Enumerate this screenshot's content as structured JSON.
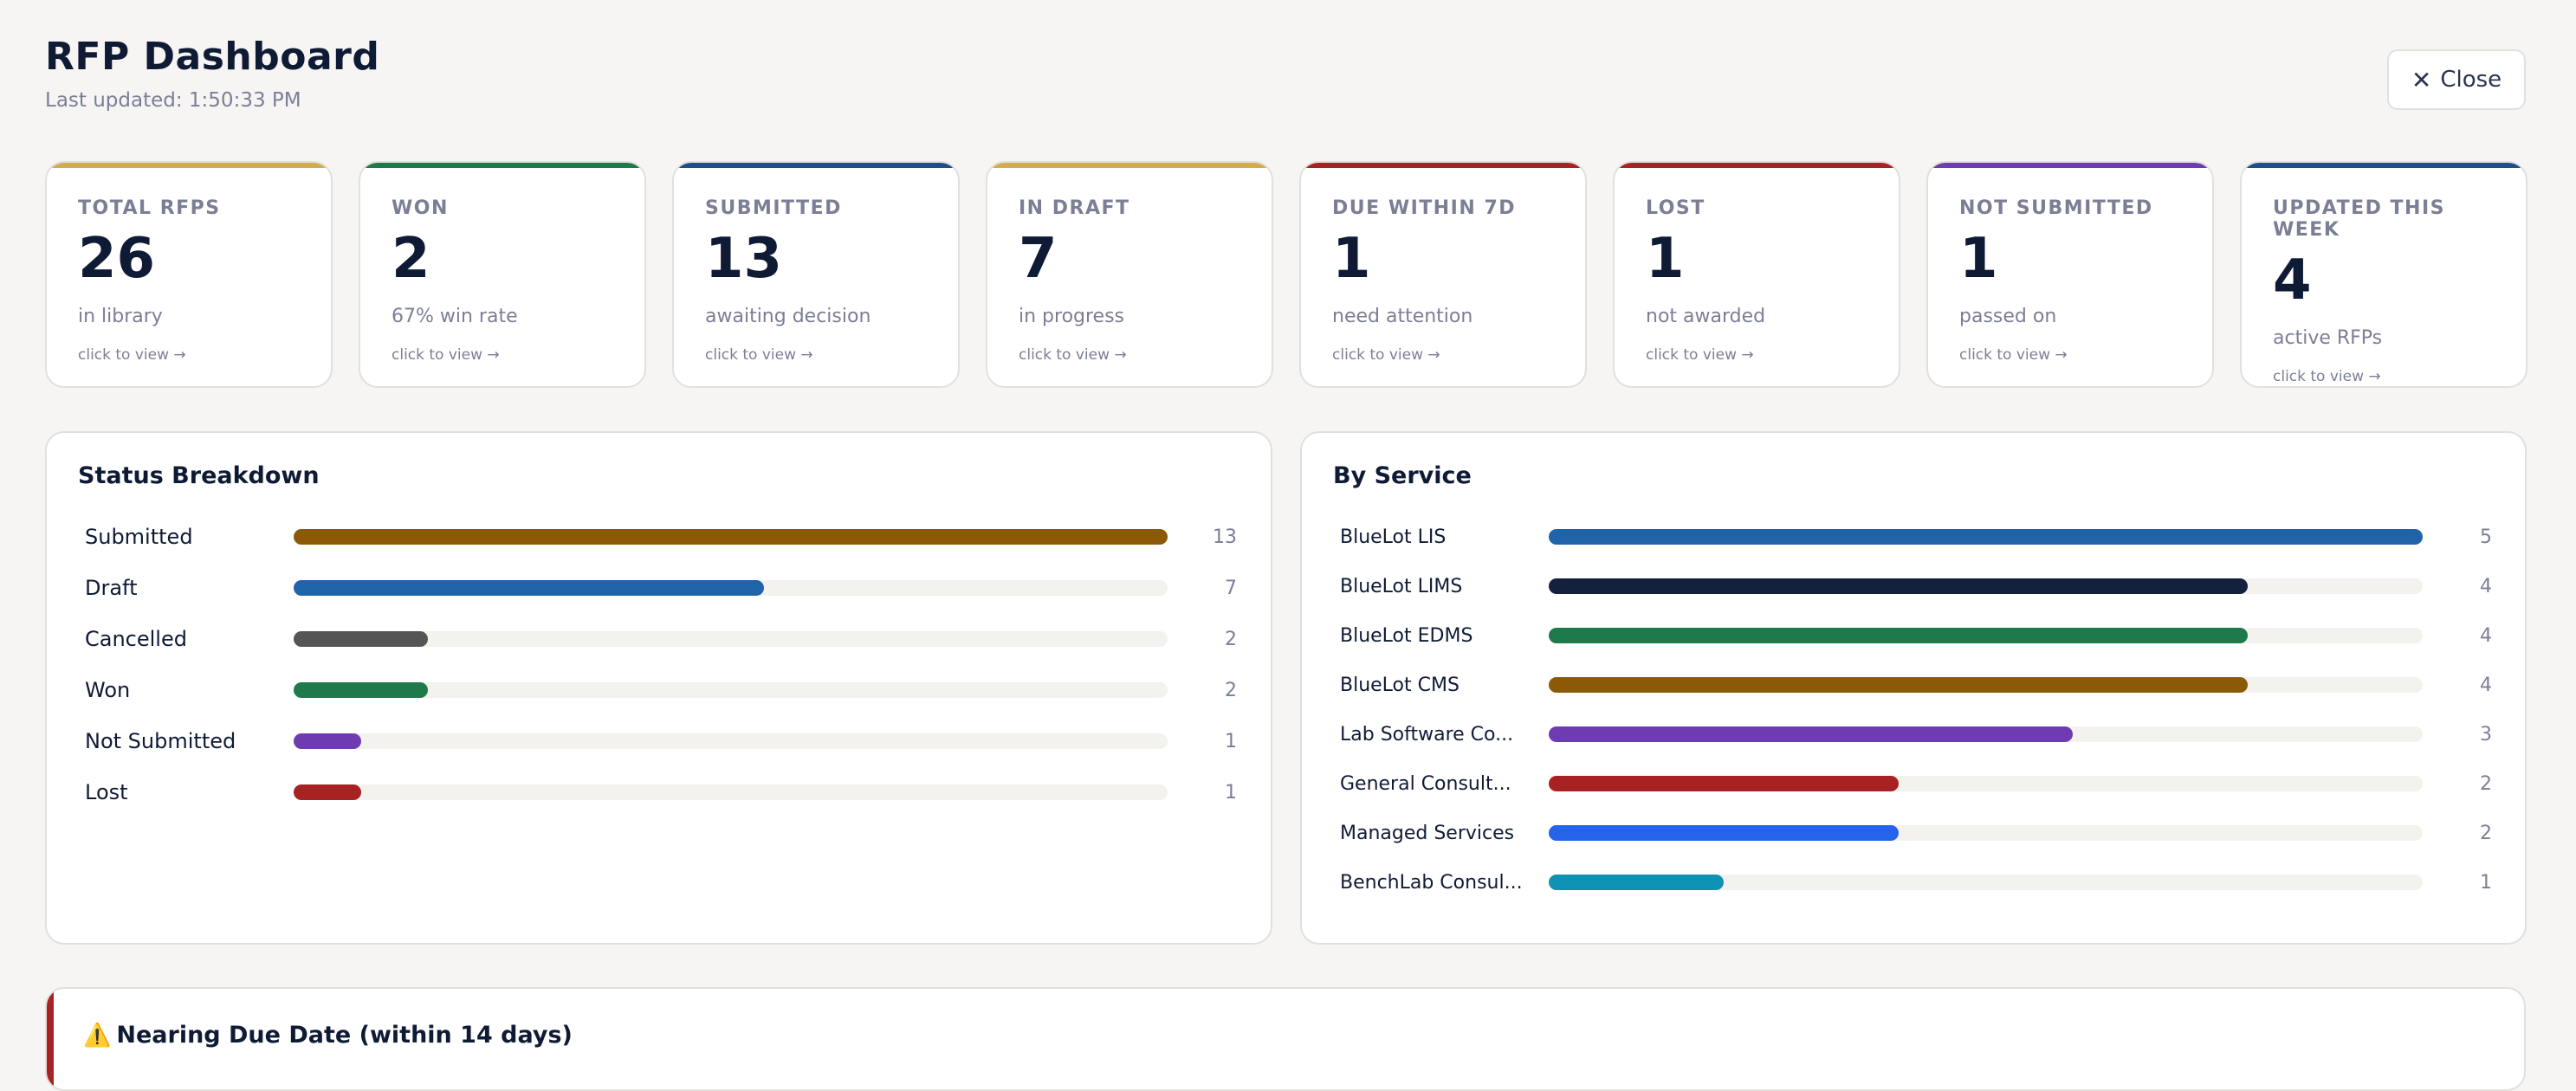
{
  "header": {
    "title": "RFP Dashboard",
    "updated": "Last updated: 1:50:33 PM",
    "close_label": "Close",
    "close_icon": "close-icon"
  },
  "stats": [
    {
      "label": "TOTAL RFPS",
      "value": "26",
      "sub": "in library",
      "cta": "click to view →",
      "color": "#d4ac4e"
    },
    {
      "label": "WON",
      "value": "2",
      "sub": "67% win rate",
      "cta": "click to view →",
      "color": "#1e7a4a"
    },
    {
      "label": "SUBMITTED",
      "value": "13",
      "sub": "awaiting decision",
      "cta": "click to view →",
      "color": "#1f4f8a"
    },
    {
      "label": "IN DRAFT",
      "value": "7",
      "sub": "in progress",
      "cta": "click to view →",
      "color": "#d4ac4e"
    },
    {
      "label": "DUE WITHIN 7D",
      "value": "1",
      "sub": "need attention",
      "cta": "click to view →",
      "color": "#a72222"
    },
    {
      "label": "LOST",
      "value": "1",
      "sub": "not awarded",
      "cta": "click to view →",
      "color": "#a72222"
    },
    {
      "label": "NOT SUBMITTED",
      "value": "1",
      "sub": "passed on",
      "cta": "click to view →",
      "color": "#6f3cb0"
    },
    {
      "label": "UPDATED THIS WEEK",
      "value": "4",
      "sub": "active RFPs",
      "cta": "click to view →",
      "color": "#1f4f8a"
    }
  ],
  "status_breakdown": {
    "title": "Status Breakdown",
    "max": 13,
    "items": [
      {
        "label": "Submitted",
        "count": 13,
        "color": "#8b5a06"
      },
      {
        "label": "Draft",
        "count": 7,
        "color": "#1f63a8"
      },
      {
        "label": "Cancelled",
        "count": 2,
        "color": "#555555"
      },
      {
        "label": "Won",
        "count": 2,
        "color": "#1e7a4a"
      },
      {
        "label": "Not Submitted",
        "count": 1,
        "color": "#6f3cb0"
      },
      {
        "label": "Lost",
        "count": 1,
        "color": "#a72222"
      }
    ]
  },
  "by_service": {
    "title": "By Service",
    "max": 5,
    "items": [
      {
        "label": "BlueLot LIS",
        "count": 5,
        "color": "#1f63a8"
      },
      {
        "label": "BlueLot LIMS",
        "count": 4,
        "color": "#13213e"
      },
      {
        "label": "BlueLot EDMS",
        "count": 4,
        "color": "#1e7a4a"
      },
      {
        "label": "BlueLot CMS",
        "count": 4,
        "color": "#8b5a06"
      },
      {
        "label": "Lab Software Co...",
        "count": 3,
        "color": "#6f3cb0"
      },
      {
        "label": "General Consult...",
        "count": 2,
        "color": "#a72222"
      },
      {
        "label": "Managed Services",
        "count": 2,
        "color": "#2563eb"
      },
      {
        "label": "BenchLab Consul...",
        "count": 1,
        "color": "#0e93b4"
      }
    ]
  },
  "due_soon": {
    "icon": "⚠️",
    "title": "Nearing Due Date (within 14 days)"
  }
}
